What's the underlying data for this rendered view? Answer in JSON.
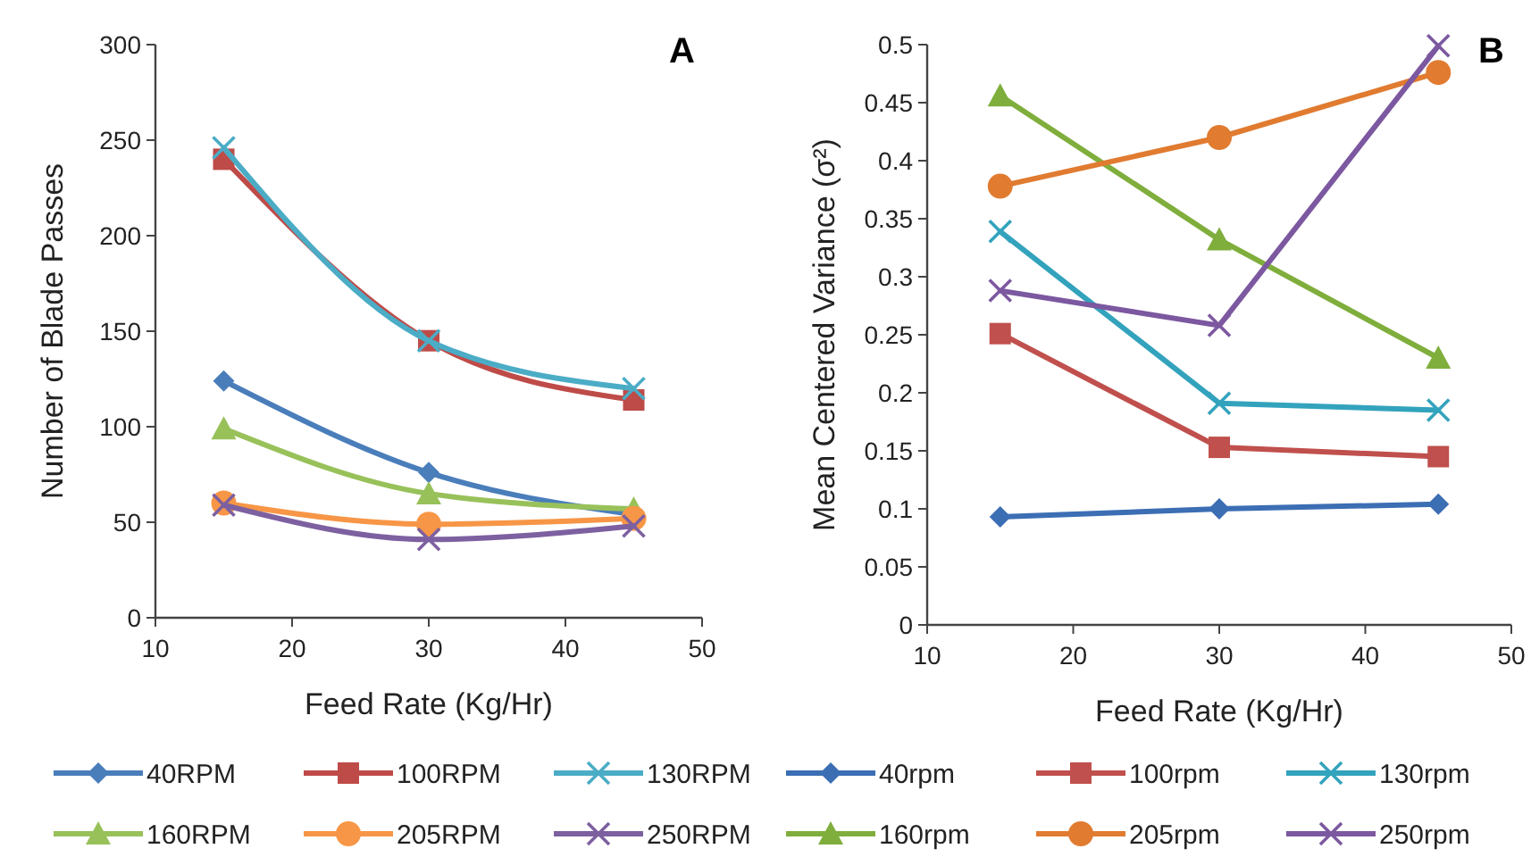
{
  "chart_data": [
    {
      "type": "line",
      "title": "A",
      "xlabel": "Feed Rate (Kg/Hr)",
      "ylabel": "Number of Blade Passes",
      "x": [
        15,
        30,
        45
      ],
      "xlim": [
        10,
        50
      ],
      "xticks": [
        10,
        20,
        30,
        40,
        50
      ],
      "ylim": [
        0,
        300
      ],
      "yticks": [
        0,
        50,
        100,
        150,
        200,
        250,
        300
      ],
      "grid": false,
      "legend": "bottom",
      "series": [
        {
          "name": "40RPM",
          "color": "#4a7ebb",
          "marker": "diamond",
          "values": [
            124,
            76,
            54
          ]
        },
        {
          "name": "100RPM",
          "color": "#be4b48",
          "marker": "square",
          "values": [
            240,
            145,
            114
          ]
        },
        {
          "name": "130RPM",
          "color": "#4bacc6",
          "marker": "cross",
          "values": [
            246,
            145,
            120
          ]
        },
        {
          "name": "160RPM",
          "color": "#98c15a",
          "marker": "triangle",
          "values": [
            99,
            65,
            57
          ]
        },
        {
          "name": "205RPM",
          "color": "#f79646",
          "marker": "circle",
          "values": [
            60,
            49,
            52
          ]
        },
        {
          "name": "250RPM",
          "color": "#7d60a0",
          "marker": "cross",
          "values": [
            59,
            41,
            48
          ]
        }
      ]
    },
    {
      "type": "line",
      "title": "B",
      "xlabel": "Feed Rate (Kg/Hr)",
      "ylabel": "Mean Centered Variance (σ²)",
      "x": [
        15,
        30,
        45
      ],
      "xlim": [
        10,
        50
      ],
      "xticks": [
        10,
        20,
        30,
        40,
        50
      ],
      "ylim": [
        0,
        0.5
      ],
      "yticks": [
        0,
        0.05,
        0.1,
        0.15,
        0.2,
        0.25,
        0.3,
        0.35,
        0.4,
        0.45,
        0.5
      ],
      "grid": false,
      "legend": "bottom",
      "series": [
        {
          "name": "40rpm",
          "color": "#3c6eb4",
          "marker": "diamond",
          "values": [
            0.093,
            0.1,
            0.104
          ]
        },
        {
          "name": "100rpm",
          "color": "#c0504d",
          "marker": "square",
          "values": [
            0.251,
            0.153,
            0.145
          ]
        },
        {
          "name": "130rpm",
          "color": "#33a3bd",
          "marker": "cross",
          "values": [
            0.339,
            0.191,
            0.185
          ]
        },
        {
          "name": "160rpm",
          "color": "#7fae3c",
          "marker": "triangle",
          "values": [
            0.456,
            0.332,
            0.23
          ]
        },
        {
          "name": "205rpm",
          "color": "#e07b30",
          "marker": "circle",
          "values": [
            0.378,
            0.42,
            0.476
          ]
        },
        {
          "name": "250rpm",
          "color": "#7c58a0",
          "marker": "cross",
          "values": [
            0.288,
            0.258,
            0.499
          ]
        }
      ]
    }
  ]
}
